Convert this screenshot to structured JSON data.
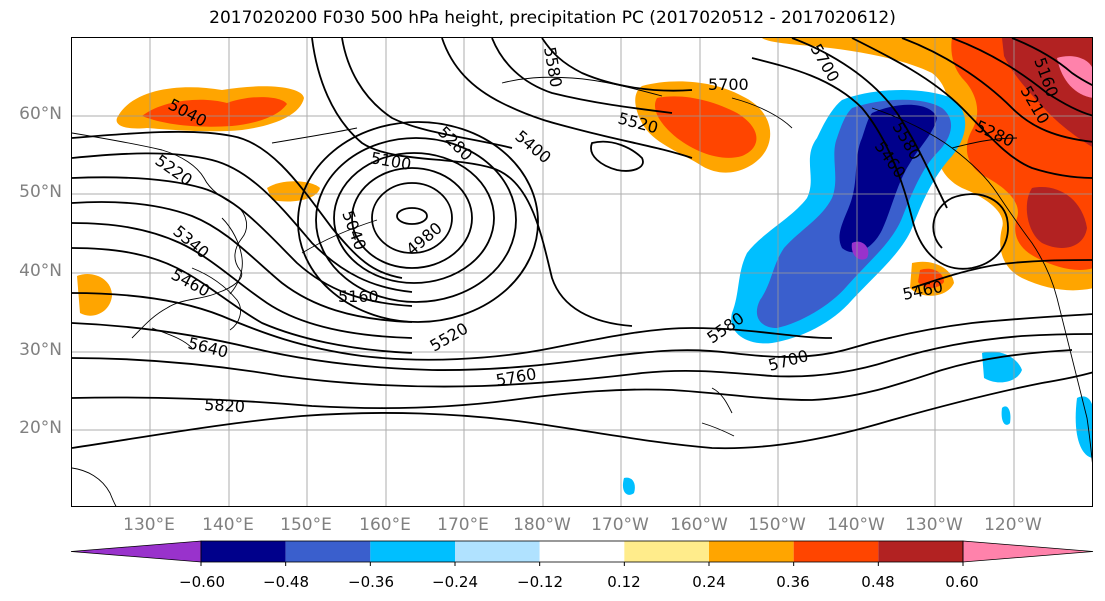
{
  "title": "2017020200 F030 500 hPa height, precipitation PC (2017020512 - 2017020612)",
  "lat_labels": [
    "60°N",
    "50°N",
    "40°N",
    "30°N",
    "20°N"
  ],
  "lon_labels": [
    "130°E",
    "140°E",
    "150°E",
    "160°E",
    "170°E",
    "180°W",
    "170°W",
    "160°W",
    "150°W",
    "140°W",
    "130°W",
    "120°W"
  ],
  "contour_labels": [
    "5040",
    "5220",
    "5340",
    "5460",
    "5640",
    "5820",
    "5100",
    "5280",
    "5400",
    "5520",
    "5580",
    "5700",
    "4980",
    "5040",
    "5160",
    "5520",
    "5760",
    "5580",
    "5700",
    "5460",
    "5160",
    "5280",
    "5210",
    "5460",
    "5580",
    "5700"
  ],
  "colorbar": {
    "ticks": [
      "−0.60",
      "−0.48",
      "−0.36",
      "−0.24",
      "−0.12",
      "0.12",
      "0.24",
      "0.36",
      "0.48",
      "0.60"
    ],
    "colors": [
      "#9932cc",
      "#00008b",
      "#3a5fcd",
      "#00bfff",
      "#b0e2ff",
      "#ffffff",
      "#ffec8b",
      "#ffa500",
      "#ff4500",
      "#b22222",
      "#ff82ab"
    ]
  },
  "colors": {
    "frame": "#000000",
    "grid": "#999999",
    "axis_text": "#808080"
  }
}
